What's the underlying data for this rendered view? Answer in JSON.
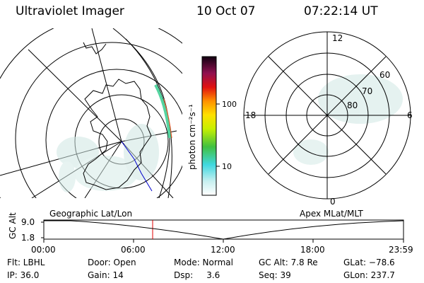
{
  "header": {
    "title": "Ultraviolet Imager",
    "date": "10 Oct 07",
    "time": "07:22:14 UT"
  },
  "colorbar": {
    "unit_label": "photon cm⁻²s⁻¹",
    "ticks": [
      "100",
      "10"
    ]
  },
  "left_panel": {
    "caption": "Geographic Lat/Lon"
  },
  "right_panel": {
    "caption": "Apex MLat/MLT",
    "mlt_labels": {
      "top": "12",
      "left": "18",
      "right": "6",
      "bottom": "0"
    },
    "lat_labels": [
      "60",
      "70",
      "80"
    ]
  },
  "timeline": {
    "ylabel": "GC Alt",
    "y_ticks": [
      "9.0",
      "1.8"
    ],
    "x_ticks": [
      "00:00",
      "06:00",
      "12:00",
      "18:00",
      "23:59"
    ]
  },
  "info": {
    "flt": "Flt: LBHL",
    "ip": "IP: 36.0",
    "door": "Door: Open",
    "gain": "Gain: 14",
    "mode": "Mode: Normal",
    "dsp": "Dsp:     3.6",
    "gcalt": "GC Alt: 7.8 Re",
    "seq": "Seq: 39",
    "glat": "GLat: −78.6",
    "glon": "GLon: 237.7"
  }
}
